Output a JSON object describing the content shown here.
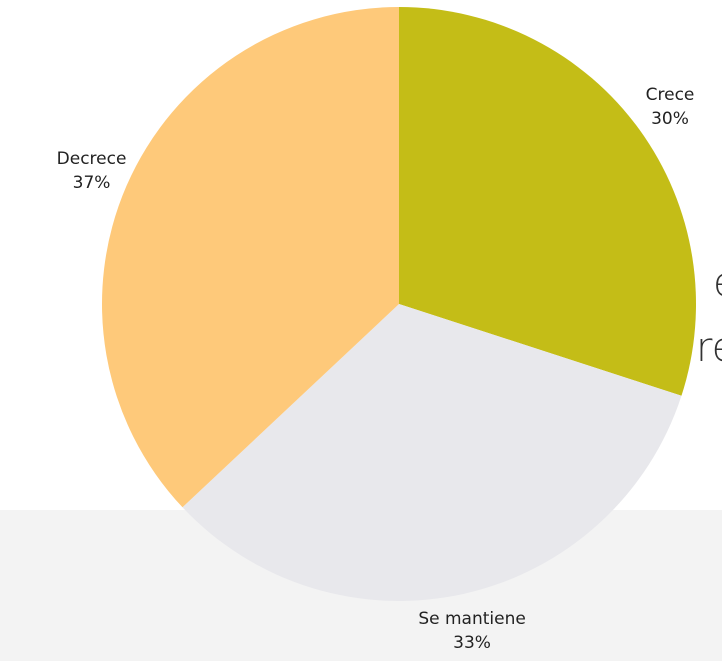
{
  "background_text": [
    "e",
    "re"
  ],
  "chart_data": {
    "type": "pie",
    "categories": [
      "Crece",
      "Se mantiene",
      "Decrece"
    ],
    "values": [
      30,
      33,
      37
    ],
    "value_labels": [
      "30%",
      "33%",
      "37%"
    ],
    "colors": [
      "#c4bd17",
      "#e8e8ec",
      "#fec97a"
    ]
  }
}
